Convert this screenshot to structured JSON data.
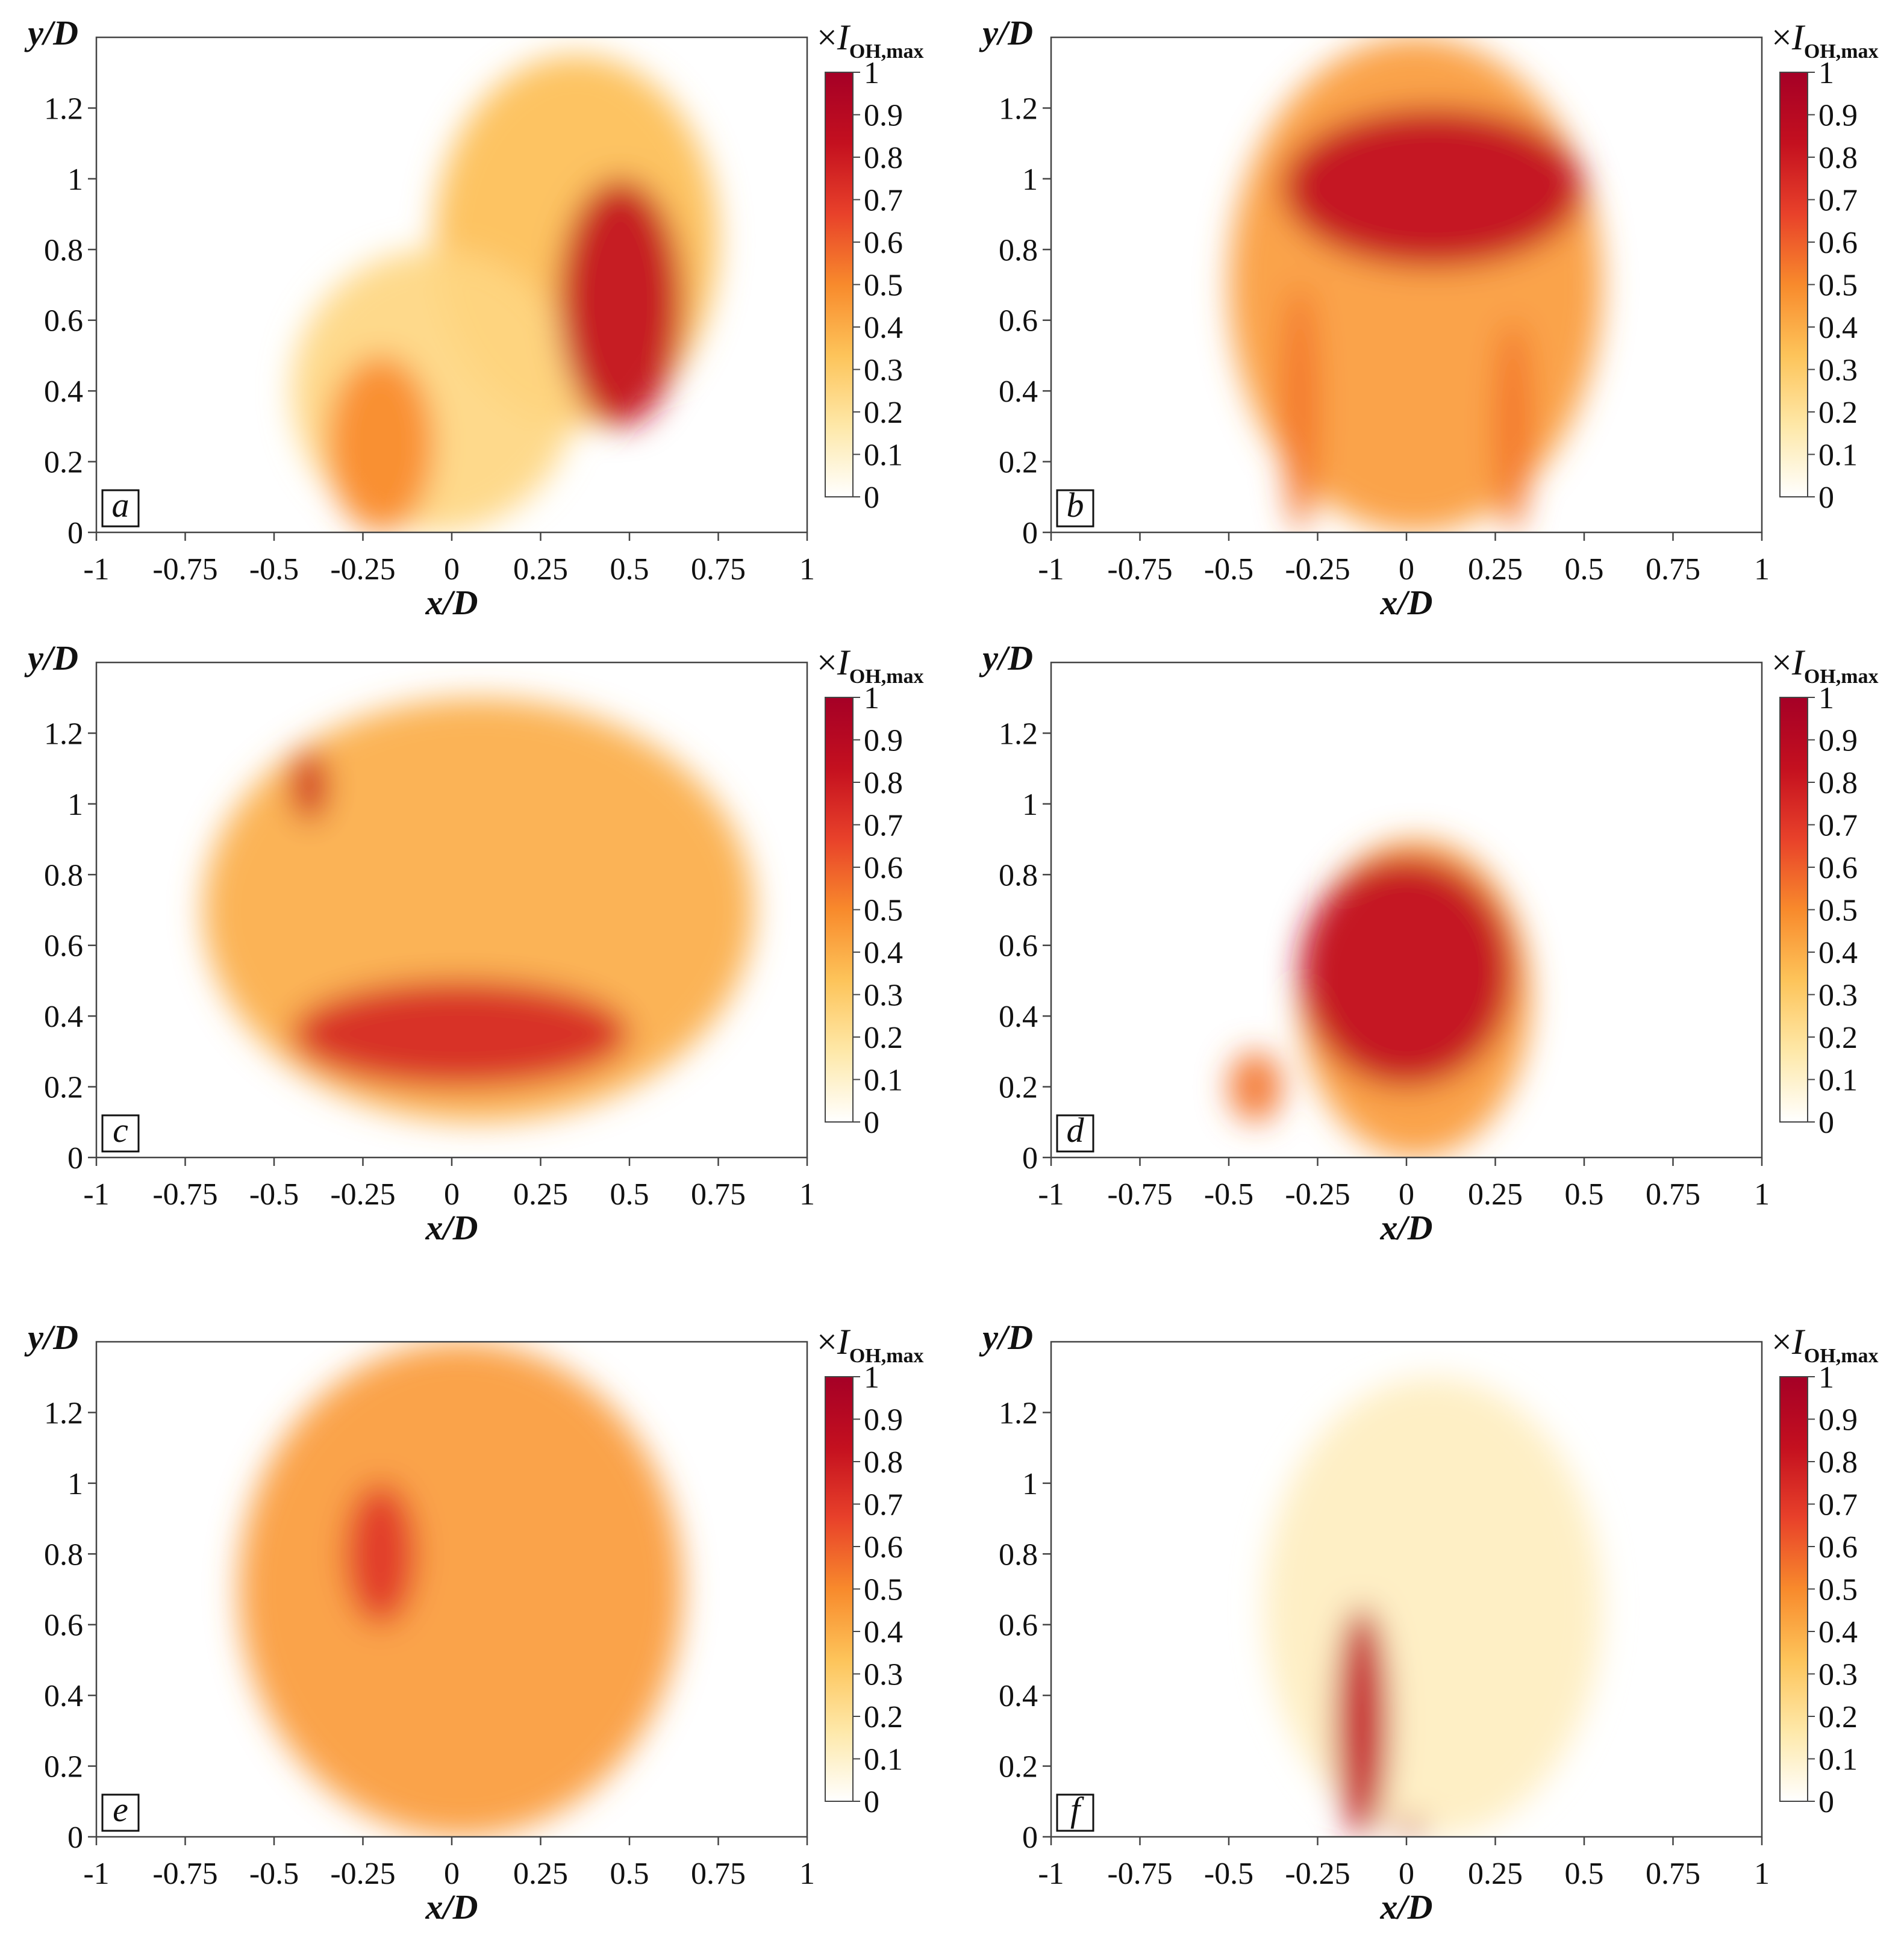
{
  "chart_data": [
    {
      "type": "heatmap",
      "panel_label": "a",
      "xlabel": "x/D",
      "ylabel": "y/D",
      "xlim": [
        -1,
        1
      ],
      "ylim": [
        0,
        1.4
      ],
      "colorbar": {
        "title": "×I_OH,max",
        "ticks": [
          "0",
          "0.1",
          "0.2",
          "0.3",
          "0.4",
          "0.5",
          "0.6",
          "0.7",
          "0.8",
          "0.9",
          "1"
        ],
        "range": [
          0,
          1
        ]
      },
      "regions": [
        {
          "x": [
            -0.05,
            0.75
          ],
          "y": [
            0.3,
            1.35
          ],
          "intensity": 0.35
        },
        {
          "x": [
            -0.45,
            0.35
          ],
          "y": [
            0.0,
            0.8
          ],
          "intensity": 0.25
        },
        {
          "x": [
            0.3,
            0.65
          ],
          "y": [
            0.3,
            1.0
          ],
          "intensity": 0.85
        },
        {
          "x": [
            -0.35,
            -0.05
          ],
          "y": [
            0.0,
            0.5
          ],
          "intensity": 0.5
        }
      ]
    },
    {
      "type": "heatmap",
      "panel_label": "b",
      "xlabel": "x/D",
      "ylabel": "y/D",
      "xlim": [
        -1,
        1
      ],
      "ylim": [
        0,
        1.4
      ],
      "colorbar": {
        "title": "×I_OH,max",
        "ticks": [
          "0",
          "0.1",
          "0.2",
          "0.3",
          "0.4",
          "0.5",
          "0.6",
          "0.7",
          "0.8",
          "0.9",
          "1"
        ],
        "range": [
          0,
          1
        ]
      },
      "regions": [
        {
          "x": [
            -0.5,
            0.55
          ],
          "y": [
            0.0,
            1.4
          ],
          "intensity": 0.45
        },
        {
          "x": [
            -0.35,
            0.5
          ],
          "y": [
            0.75,
            1.2
          ],
          "intensity": 0.85
        },
        {
          "x": [
            -0.35,
            -0.25
          ],
          "y": [
            0.0,
            0.7
          ],
          "intensity": 0.55
        },
        {
          "x": [
            0.25,
            0.35
          ],
          "y": [
            0.0,
            0.6
          ],
          "intensity": 0.55
        }
      ]
    },
    {
      "type": "heatmap",
      "panel_label": "c",
      "xlabel": "x/D",
      "ylabel": "y/D",
      "xlim": [
        -1,
        1
      ],
      "ylim": [
        0,
        1.4
      ],
      "colorbar": {
        "title": "×I_OH,max",
        "ticks": [
          "0",
          "0.1",
          "0.2",
          "0.3",
          "0.4",
          "0.5",
          "0.6",
          "0.7",
          "0.8",
          "0.9",
          "1"
        ],
        "range": [
          0,
          1
        ]
      },
      "regions": [
        {
          "x": [
            -0.7,
            0.85
          ],
          "y": [
            0.1,
            1.3
          ],
          "intensity": 0.4
        },
        {
          "x": [
            -0.45,
            -0.35
          ],
          "y": [
            0.95,
            1.15
          ],
          "intensity": 0.8
        },
        {
          "x": [
            -0.45,
            0.5
          ],
          "y": [
            0.2,
            0.5
          ],
          "intensity": 0.75
        }
      ]
    },
    {
      "type": "heatmap",
      "panel_label": "d",
      "xlabel": "x/D",
      "ylabel": "y/D",
      "xlim": [
        -1,
        1
      ],
      "ylim": [
        0,
        1.4
      ],
      "colorbar": {
        "title": "×I_OH,max",
        "ticks": [
          "0",
          "0.1",
          "0.2",
          "0.3",
          "0.4",
          "0.5",
          "0.6",
          "0.7",
          "0.8",
          "0.9",
          "1"
        ],
        "range": [
          0,
          1
        ]
      },
      "regions": [
        {
          "x": [
            -0.3,
            0.35
          ],
          "y": [
            0.0,
            0.9
          ],
          "intensity": 0.45
        },
        {
          "x": [
            -0.3,
            0.3
          ],
          "y": [
            0.2,
            0.85
          ],
          "intensity": 0.85
        },
        {
          "x": [
            -0.5,
            -0.35
          ],
          "y": [
            0.1,
            0.3
          ],
          "intensity": 0.55
        }
      ]
    },
    {
      "type": "heatmap",
      "panel_label": "e",
      "xlabel": "x/D",
      "ylabel": "y/D",
      "xlim": [
        -1,
        1
      ],
      "ylim": [
        0,
        1.4
      ],
      "colorbar": {
        "title": "×I_OH,max",
        "ticks": [
          "0",
          "0.1",
          "0.2",
          "0.3",
          "0.4",
          "0.5",
          "0.6",
          "0.7",
          "0.8",
          "0.9",
          "1"
        ],
        "range": [
          0,
          1
        ]
      },
      "regions": [
        {
          "x": [
            -0.6,
            0.65
          ],
          "y": [
            0.0,
            1.4
          ],
          "intensity": 0.45
        },
        {
          "x": [
            -0.3,
            -0.1
          ],
          "y": [
            0.6,
            1.0
          ],
          "intensity": 0.7
        }
      ]
    },
    {
      "type": "heatmap",
      "panel_label": "f",
      "xlabel": "x/D",
      "ylabel": "y/D",
      "xlim": [
        -1,
        1
      ],
      "ylim": [
        0,
        1.4
      ],
      "colorbar": {
        "title": "×I_OH,max",
        "ticks": [
          "0",
          "0.1",
          "0.2",
          "0.3",
          "0.4",
          "0.5",
          "0.6",
          "0.7",
          "0.8",
          "0.9",
          "1"
        ],
        "range": [
          0,
          1
        ]
      },
      "regions": [
        {
          "x": [
            -0.4,
            0.55
          ],
          "y": [
            0.0,
            1.3
          ],
          "intensity": 0.12
        },
        {
          "x": [
            -0.2,
            -0.05
          ],
          "y": [
            0.0,
            0.65
          ],
          "intensity": 0.85
        },
        {
          "x": [
            -0.03,
            0.05
          ],
          "y": [
            0.0,
            0.05
          ],
          "intensity": 0.85
        }
      ]
    }
  ],
  "figure": {
    "x_ticks": [
      "-1",
      "-0.75",
      "-0.5",
      "-0.25",
      "0",
      "0.25",
      "0.5",
      "0.75",
      "1"
    ],
    "y_ticks": [
      "0",
      "0.2",
      "0.4",
      "0.6",
      "0.8",
      "1",
      "1.2"
    ],
    "x_label": "x/D",
    "y_label": "y/D",
    "colorbar_title": "×I_OH,max",
    "colormap": [
      "#ffffff",
      "#fee8a8",
      "#fdc45a",
      "#f88a2c",
      "#e8412a",
      "#c4101f",
      "#a50026"
    ]
  }
}
